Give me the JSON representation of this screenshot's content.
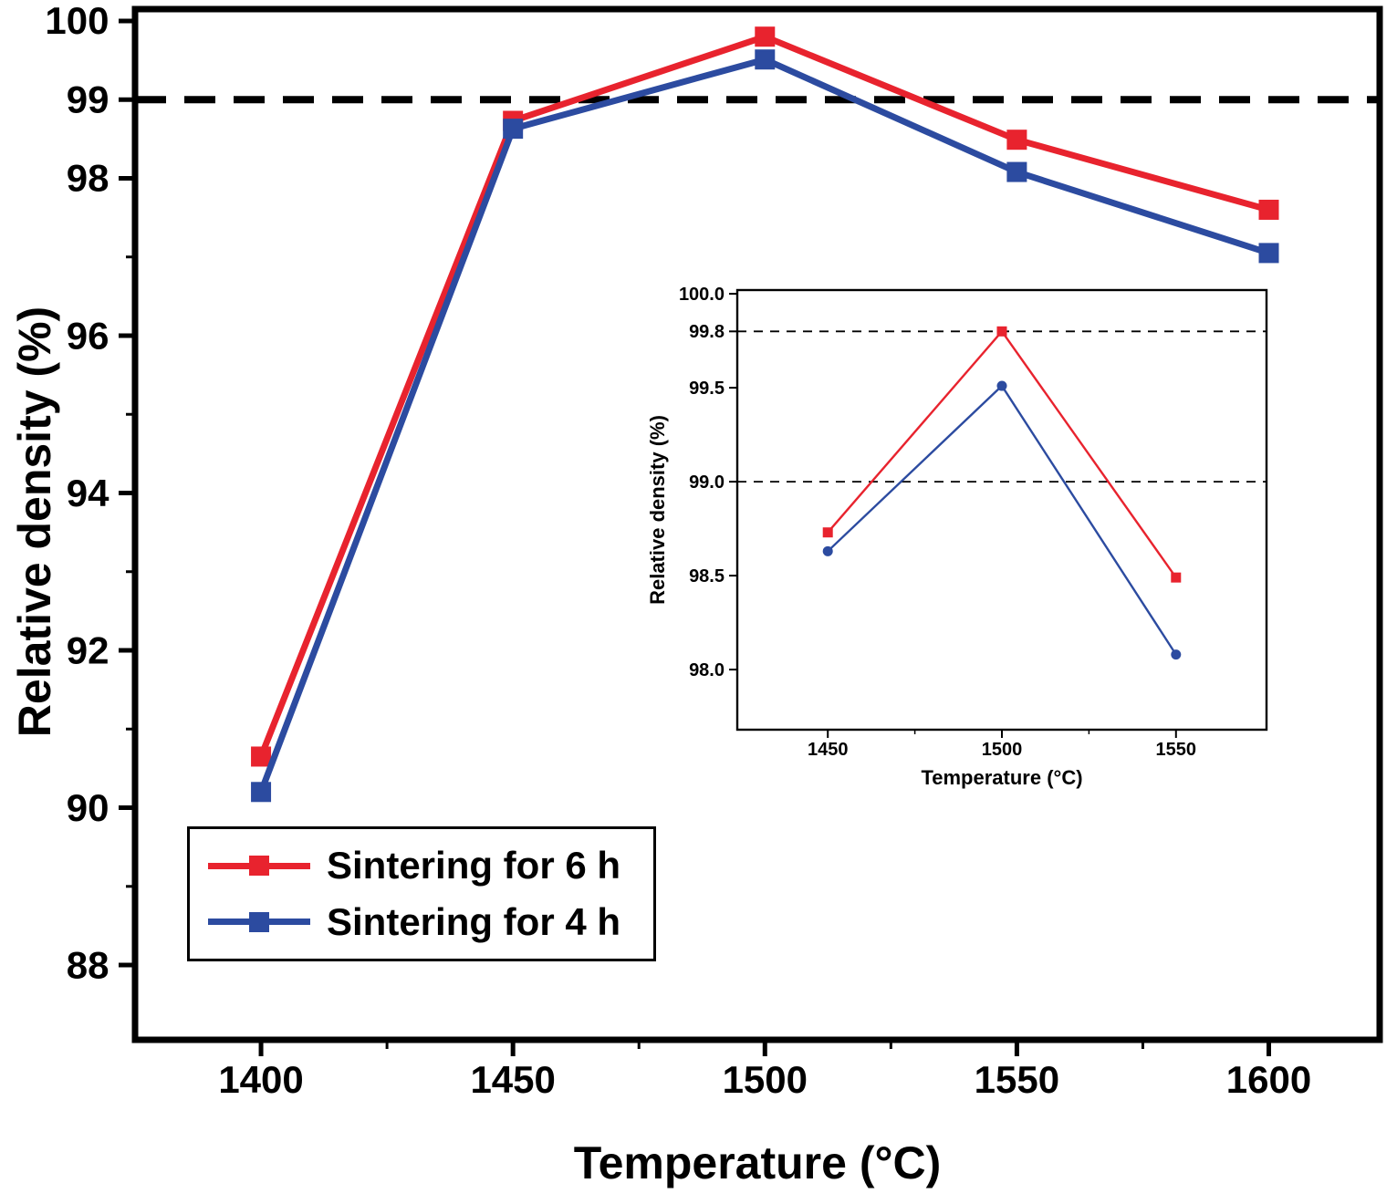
{
  "figure": {
    "background": "#ffffff",
    "axis_color": "#000000"
  },
  "chart_data": [
    {
      "type": "line",
      "title": "",
      "xlabel": "Temperature (°C)",
      "ylabel": "Relative density (%)",
      "x": [
        1400,
        1450,
        1500,
        1550,
        1600
      ],
      "series": [
        {
          "name": "Sintering for 6 h",
          "color": "#e8232e",
          "marker": "square",
          "values": [
            90.65,
            98.73,
            99.8,
            98.49,
            97.6
          ]
        },
        {
          "name": "Sintering for 4 h",
          "color": "#2c4ba0",
          "marker": "square",
          "values": [
            90.2,
            98.63,
            99.51,
            98.08,
            97.05
          ]
        }
      ],
      "xlim": [
        1375,
        1622
      ],
      "ylim": [
        87.05,
        100.15
      ],
      "xticks": [
        1400,
        1450,
        1500,
        1550,
        1600
      ],
      "xtick_labels": [
        "1400",
        "1450",
        "1500",
        "1550",
        "1600"
      ],
      "xticks_minor": [
        1425,
        1475,
        1525,
        1575
      ],
      "yticks": [
        88,
        90,
        92,
        94,
        96,
        98,
        99,
        100
      ],
      "ytick_labels": [
        "88",
        "90",
        "92",
        "94",
        "96",
        "98",
        "99",
        "100"
      ],
      "yticks_minor": [
        89,
        91,
        93,
        95,
        97
      ],
      "reference_lines_y": [
        99
      ],
      "grid": false,
      "legend_position": "lower-left"
    },
    {
      "type": "line",
      "title": "",
      "xlabel": "Temperature (°C)",
      "ylabel": "Relative density (%)",
      "x": [
        1450,
        1500,
        1550
      ],
      "series": [
        {
          "name": "Sintering for 6 h",
          "color": "#e8232e",
          "marker": "square",
          "values": [
            98.73,
            99.8,
            98.49
          ]
        },
        {
          "name": "Sintering for 4 h",
          "color": "#2c4ba0",
          "marker": "circle",
          "values": [
            98.63,
            99.51,
            98.08
          ]
        }
      ],
      "xlim": [
        1424,
        1576
      ],
      "ylim": [
        97.68,
        100.02
      ],
      "xticks": [
        1450,
        1500,
        1550
      ],
      "xtick_labels": [
        "1450",
        "1500",
        "1550"
      ],
      "xticks_minor": [
        1475,
        1525
      ],
      "yticks": [
        98.0,
        98.5,
        99.0,
        99.5,
        99.8,
        100.0
      ],
      "ytick_labels": [
        "98.0",
        "98.5",
        "99.0",
        "99.5",
        "99.8",
        "100.0"
      ],
      "yticks_minor": [],
      "reference_lines_y": [
        99.8,
        99.0
      ],
      "grid": false,
      "legend_position": "none"
    }
  ]
}
